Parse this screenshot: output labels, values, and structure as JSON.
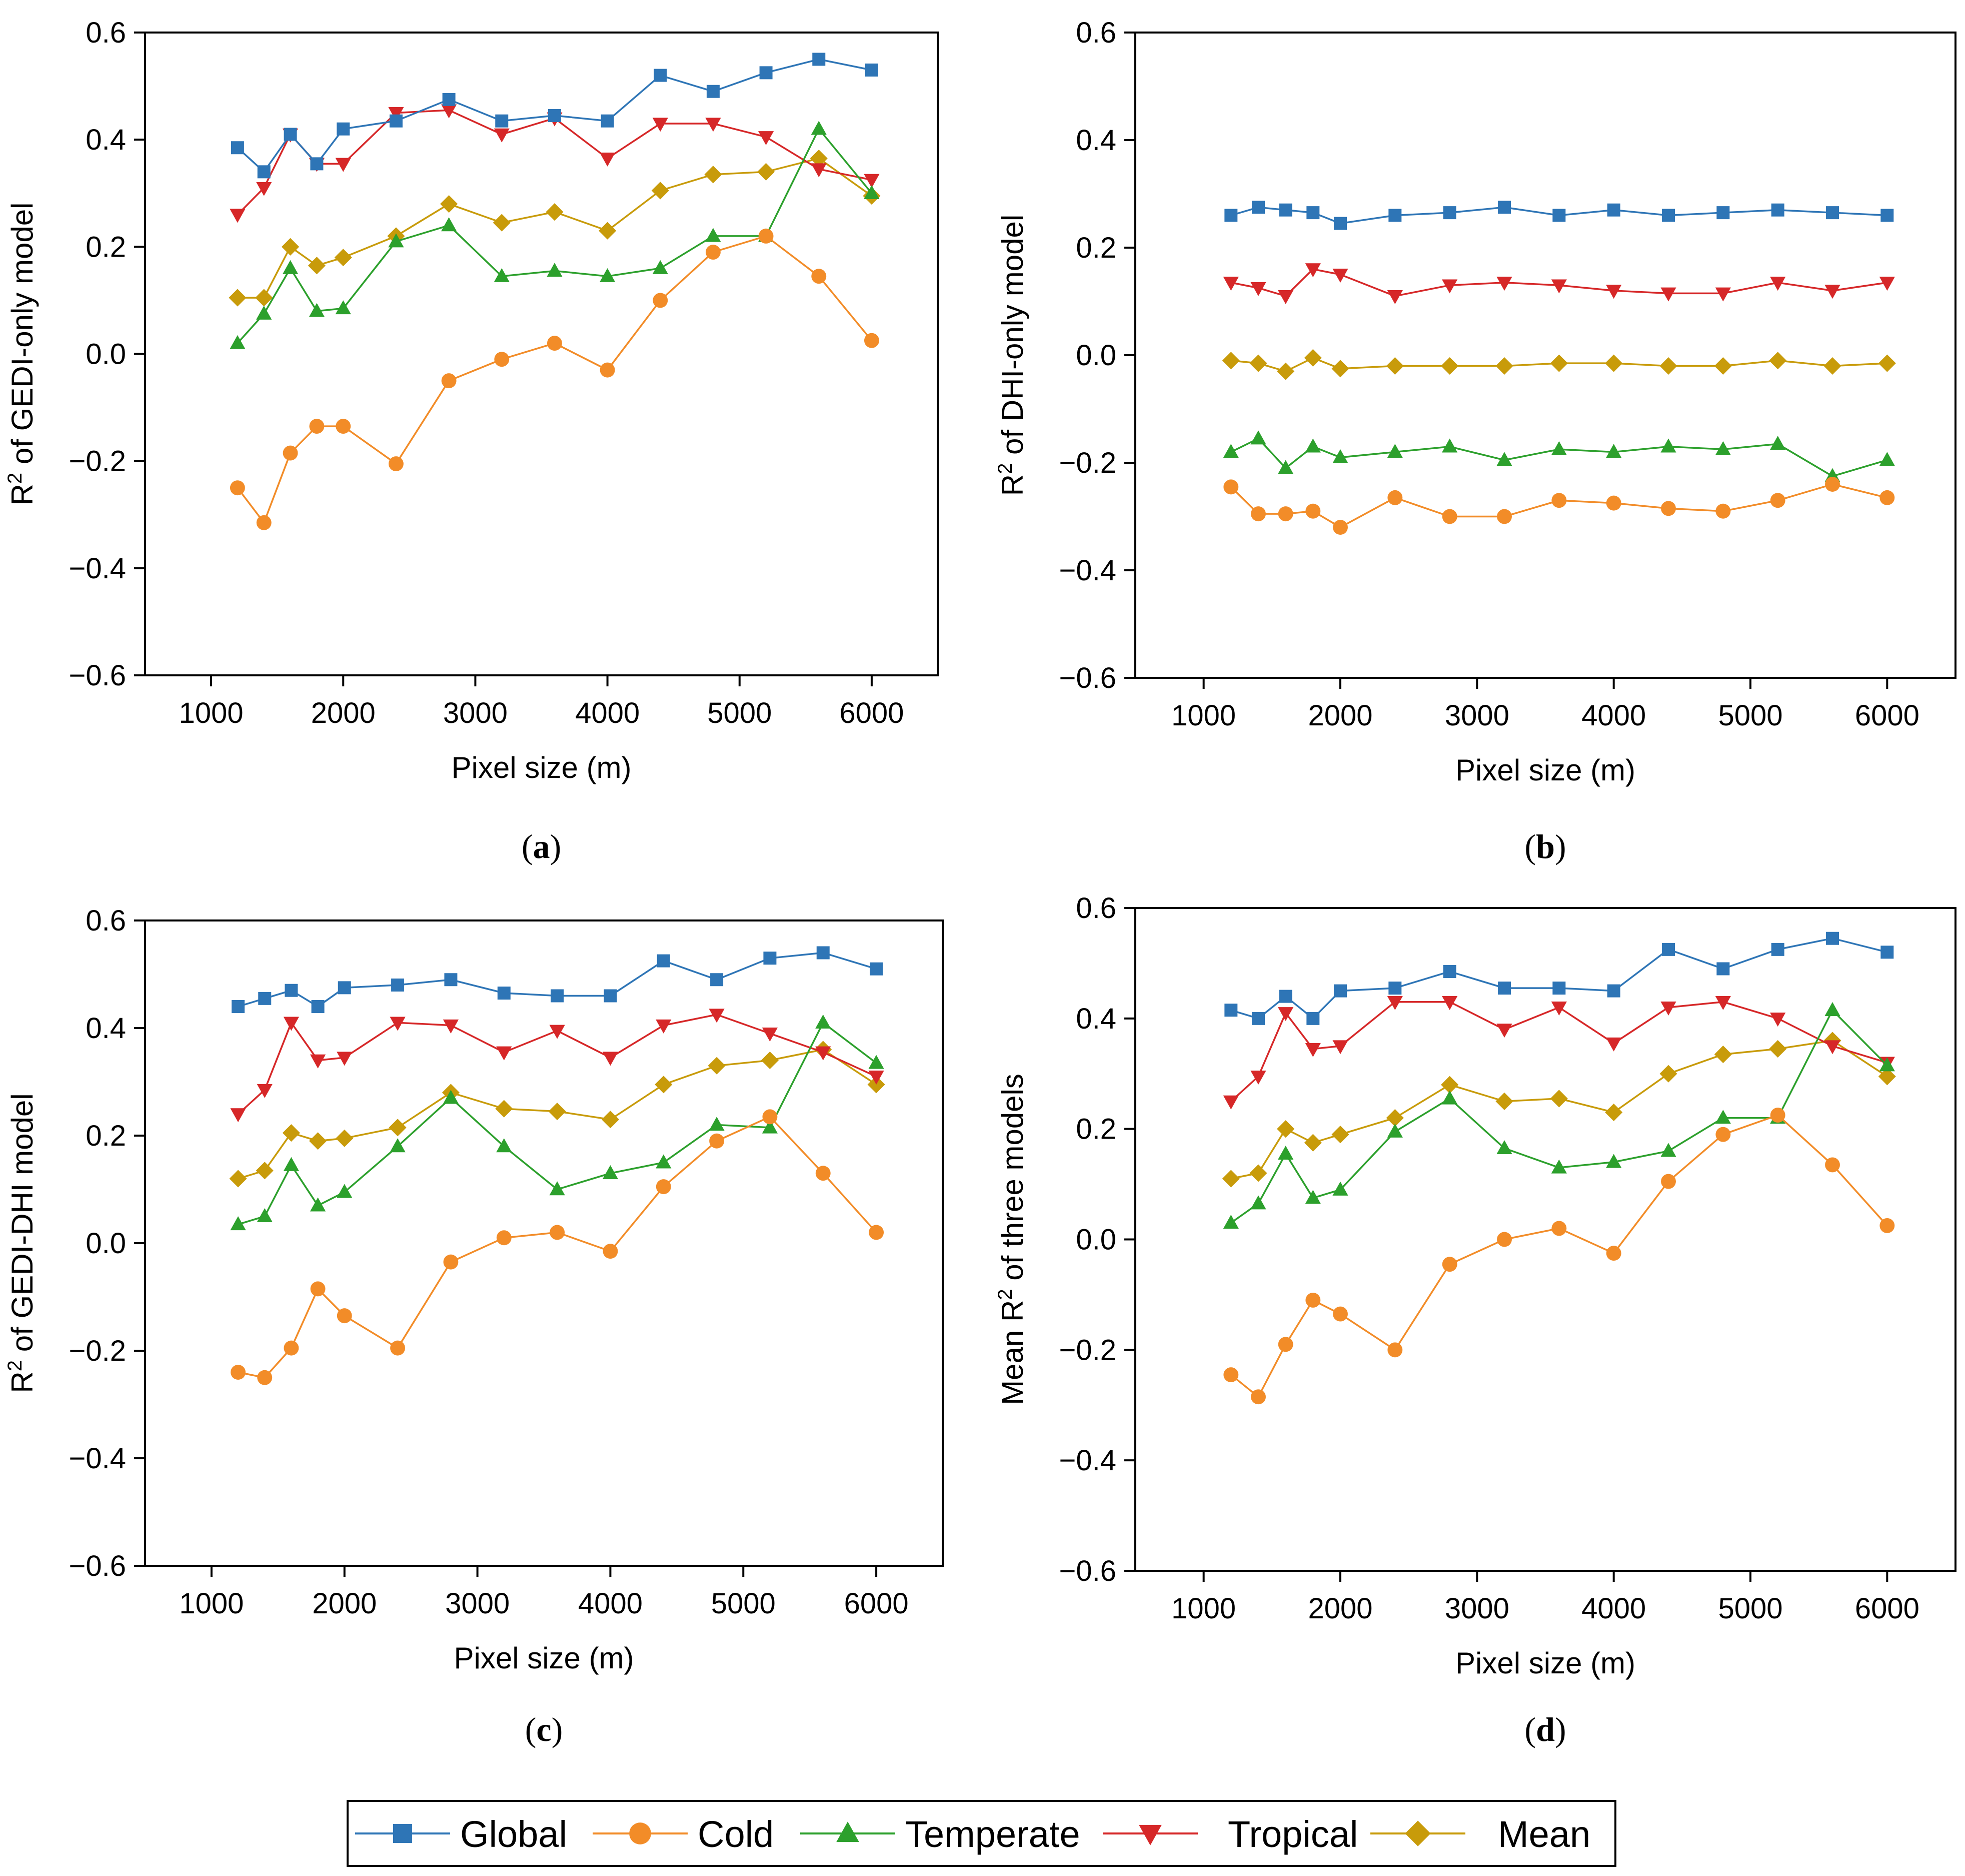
{
  "chart_data": [
    {
      "type": "line",
      "panel": "(a)",
      "panel_letter": "a",
      "ylabel_prefix": "R",
      "ylabel_sup": "2",
      "ylabel_suffix": " of GEDI-only model",
      "xlabel": "Pixel size (m)",
      "xlim": [
        500,
        6500
      ],
      "ylim": [
        -0.6,
        0.6
      ],
      "xticks": [
        1000,
        2000,
        3000,
        4000,
        5000,
        6000
      ],
      "yticks": [
        -0.6,
        -0.4,
        -0.2,
        0.0,
        0.2,
        0.4,
        0.6
      ],
      "ytick_labels": [
        "−0.6",
        "−0.4",
        "−0.2",
        "0.0",
        "0.2",
        "0.4",
        "0.6"
      ],
      "x": [
        1200,
        1400,
        1600,
        1800,
        2000,
        2400,
        2800,
        3200,
        3600,
        4000,
        4400,
        4800,
        5200,
        5600,
        6000
      ],
      "series": [
        {
          "name": "Global",
          "values": [
            0.385,
            0.34,
            0.41,
            0.355,
            0.42,
            0.435,
            0.475,
            0.435,
            0.445,
            0.435,
            0.52,
            0.49,
            0.525,
            0.55,
            0.53
          ]
        },
        {
          "name": "Cold",
          "values": [
            -0.25,
            -0.315,
            -0.185,
            -0.135,
            -0.135,
            -0.205,
            -0.05,
            -0.01,
            0.02,
            -0.03,
            0.1,
            0.19,
            0.22,
            0.145,
            0.025
          ]
        },
        {
          "name": "Temperate",
          "values": [
            0.02,
            0.075,
            0.16,
            0.08,
            0.085,
            0.21,
            0.24,
            0.145,
            0.155,
            0.145,
            0.16,
            0.22,
            0.22,
            0.42,
            0.3
          ]
        },
        {
          "name": "Tropical",
          "values": [
            0.26,
            0.31,
            0.41,
            0.355,
            0.355,
            0.45,
            0.455,
            0.41,
            0.44,
            0.365,
            0.43,
            0.43,
            0.405,
            0.345,
            0.325
          ]
        },
        {
          "name": "Mean",
          "values": [
            0.105,
            0.105,
            0.2,
            0.165,
            0.18,
            0.22,
            0.28,
            0.245,
            0.265,
            0.23,
            0.305,
            0.335,
            0.34,
            0.365,
            0.295
          ]
        }
      ]
    },
    {
      "type": "line",
      "panel": "(b)",
      "panel_letter": "b",
      "ylabel_prefix": "R",
      "ylabel_sup": "2",
      "ylabel_suffix": " of DHI-only model",
      "xlabel": "Pixel size (m)",
      "xlim": [
        500,
        6500
      ],
      "ylim": [
        -0.6,
        0.6
      ],
      "xticks": [
        1000,
        2000,
        3000,
        4000,
        5000,
        6000
      ],
      "yticks": [
        -0.6,
        -0.4,
        -0.2,
        0.0,
        0.2,
        0.4,
        0.6
      ],
      "ytick_labels": [
        "−0.6",
        "−0.4",
        "−0.2",
        "0.0",
        "0.2",
        "0.4",
        "0.6"
      ],
      "x": [
        1200,
        1400,
        1600,
        1800,
        2000,
        2400,
        2800,
        3200,
        3600,
        4000,
        4400,
        4800,
        5200,
        5600,
        6000
      ],
      "series": [
        {
          "name": "Global",
          "values": [
            0.26,
            0.275,
            0.27,
            0.265,
            0.245,
            0.26,
            0.265,
            0.275,
            0.26,
            0.27,
            0.26,
            0.265,
            0.27,
            0.265,
            0.26
          ]
        },
        {
          "name": "Cold",
          "values": [
            -0.245,
            -0.295,
            -0.295,
            -0.29,
            -0.32,
            -0.265,
            -0.3,
            -0.3,
            -0.27,
            -0.275,
            -0.285,
            -0.29,
            -0.27,
            -0.24,
            -0.265
          ]
        },
        {
          "name": "Temperate",
          "values": [
            -0.18,
            -0.155,
            -0.21,
            -0.17,
            -0.19,
            -0.18,
            -0.17,
            -0.195,
            -0.175,
            -0.18,
            -0.17,
            -0.175,
            -0.165,
            -0.225,
            -0.195
          ]
        },
        {
          "name": "Tropical",
          "values": [
            0.135,
            0.125,
            0.11,
            0.16,
            0.15,
            0.11,
            0.13,
            0.135,
            0.13,
            0.12,
            0.115,
            0.115,
            0.135,
            0.12,
            0.135
          ]
        },
        {
          "name": "Mean",
          "values": [
            -0.01,
            -0.015,
            -0.03,
            -0.005,
            -0.025,
            -0.02,
            -0.02,
            -0.02,
            -0.015,
            -0.015,
            -0.02,
            -0.02,
            -0.01,
            -0.02,
            -0.015
          ]
        }
      ]
    },
    {
      "type": "line",
      "panel": "(c)",
      "panel_letter": "c",
      "ylabel_prefix": "R",
      "ylabel_sup": "2",
      "ylabel_suffix": " of GEDI-DHI model",
      "xlabel": "Pixel size (m)",
      "xlim": [
        500,
        6500
      ],
      "ylim": [
        -0.6,
        0.6
      ],
      "xticks": [
        1000,
        2000,
        3000,
        4000,
        5000,
        6000
      ],
      "yticks": [
        -0.6,
        -0.4,
        -0.2,
        0.0,
        0.2,
        0.4,
        0.6
      ],
      "ytick_labels": [
        "−0.6",
        "−0.4",
        "−0.2",
        "0.0",
        "0.2",
        "0.4",
        "0.6"
      ],
      "x": [
        1200,
        1400,
        1600,
        1800,
        2000,
        2400,
        2800,
        3200,
        3600,
        4000,
        4400,
        4800,
        5200,
        5600,
        6000
      ],
      "series": [
        {
          "name": "Global",
          "values": [
            0.44,
            0.455,
            0.47,
            0.44,
            0.475,
            0.48,
            0.49,
            0.465,
            0.46,
            0.46,
            0.525,
            0.49,
            0.53,
            0.54,
            0.51
          ]
        },
        {
          "name": "Cold",
          "values": [
            -0.24,
            -0.25,
            -0.195,
            -0.085,
            -0.135,
            -0.195,
            -0.035,
            0.01,
            0.02,
            -0.015,
            0.105,
            0.19,
            0.235,
            0.13,
            0.02
          ]
        },
        {
          "name": "Temperate",
          "values": [
            0.035,
            0.05,
            0.145,
            0.07,
            0.095,
            0.18,
            0.27,
            0.18,
            0.1,
            0.13,
            0.15,
            0.22,
            0.215,
            0.41,
            0.335
          ]
        },
        {
          "name": "Tropical",
          "values": [
            0.24,
            0.285,
            0.41,
            0.34,
            0.345,
            0.41,
            0.405,
            0.355,
            0.395,
            0.345,
            0.405,
            0.425,
            0.39,
            0.355,
            0.31
          ]
        },
        {
          "name": "Mean",
          "values": [
            0.12,
            0.135,
            0.205,
            0.19,
            0.195,
            0.215,
            0.28,
            0.25,
            0.245,
            0.23,
            0.295,
            0.33,
            0.34,
            0.36,
            0.295
          ]
        }
      ]
    },
    {
      "type": "line",
      "panel": "(d)",
      "panel_letter": "d",
      "ylabel_prefix": "Mean R",
      "ylabel_sup": "2",
      "ylabel_suffix": " of three models",
      "xlabel": "Pixel size (m)",
      "xlim": [
        500,
        6500
      ],
      "ylim": [
        -0.6,
        0.6
      ],
      "xticks": [
        1000,
        2000,
        3000,
        4000,
        5000,
        6000
      ],
      "yticks": [
        -0.6,
        -0.4,
        -0.2,
        0.0,
        0.2,
        0.4,
        0.6
      ],
      "ytick_labels": [
        "−0.6",
        "−0.4",
        "−0.2",
        "0.0",
        "0.2",
        "0.4",
        "0.6"
      ],
      "x": [
        1200,
        1400,
        1600,
        1800,
        2000,
        2400,
        2800,
        3200,
        3600,
        4000,
        4400,
        4800,
        5200,
        5600,
        6000
      ],
      "series": [
        {
          "name": "Global",
          "values": [
            0.415,
            0.4,
            0.44,
            0.4,
            0.45,
            0.455,
            0.485,
            0.455,
            0.455,
            0.45,
            0.525,
            0.49,
            0.525,
            0.545,
            0.52
          ]
        },
        {
          "name": "Cold",
          "values": [
            -0.245,
            -0.285,
            -0.19,
            -0.11,
            -0.135,
            -0.2,
            -0.045,
            0.0,
            0.02,
            -0.025,
            0.105,
            0.19,
            0.225,
            0.135,
            0.025
          ]
        },
        {
          "name": "Temperate",
          "values": [
            0.03,
            0.065,
            0.155,
            0.075,
            0.09,
            0.195,
            0.255,
            0.165,
            0.13,
            0.14,
            0.16,
            0.22,
            0.22,
            0.415,
            0.315
          ]
        },
        {
          "name": "Tropical",
          "values": [
            0.25,
            0.295,
            0.41,
            0.345,
            0.35,
            0.43,
            0.43,
            0.38,
            0.42,
            0.355,
            0.42,
            0.43,
            0.4,
            0.35,
            0.32
          ]
        },
        {
          "name": "Mean",
          "values": [
            0.11,
            0.12,
            0.2,
            0.175,
            0.19,
            0.22,
            0.28,
            0.25,
            0.255,
            0.23,
            0.3,
            0.335,
            0.345,
            0.36,
            0.295
          ]
        }
      ]
    }
  ],
  "legend": {
    "position": "bottom-center",
    "entries": [
      {
        "name": "Global",
        "marker": "square"
      },
      {
        "name": "Cold",
        "marker": "circle"
      },
      {
        "name": "Temperate",
        "marker": "triangle-up"
      },
      {
        "name": "Tropical",
        "marker": "triangle-down"
      },
      {
        "name": "Mean",
        "marker": "diamond"
      }
    ]
  },
  "colors": {
    "Global": "#2E75B6",
    "Cold": "#F28C28",
    "Temperate": "#2CA02C",
    "Tropical": "#D62728",
    "Mean": "#C89B0A"
  }
}
